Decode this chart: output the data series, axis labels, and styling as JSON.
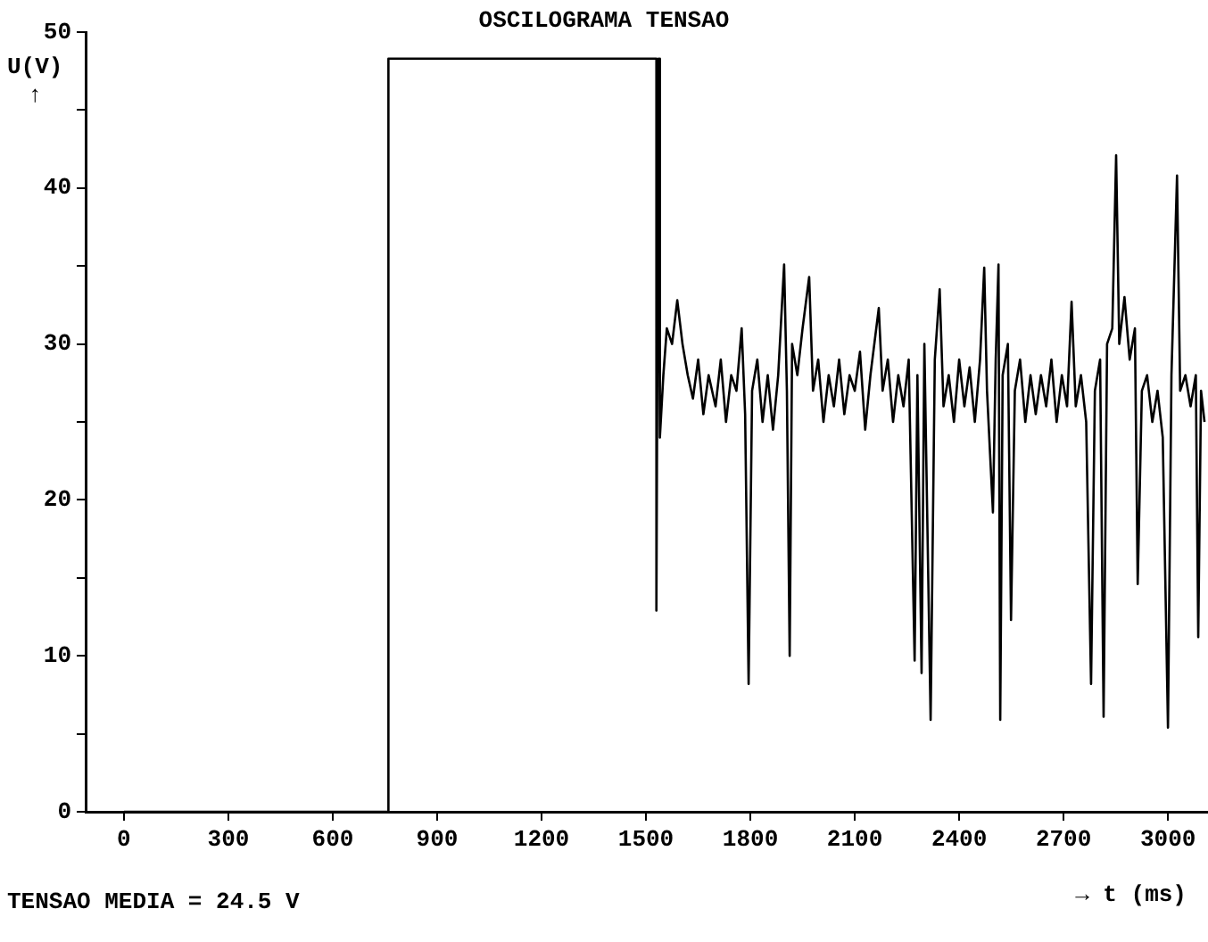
{
  "chart_data": {
    "type": "line",
    "title": "OSCILOGRAMA TENSAO",
    "xlabel": "→ t (ms)",
    "ylabel": "U(V)\n↑",
    "annotations": [
      "TENSAO MEDIA  = 24.5 V"
    ],
    "xlim": [
      -110,
      3115
    ],
    "xticks": [
      0,
      300,
      600,
      900,
      1200,
      1500,
      1800,
      2100,
      2400,
      2700,
      3000
    ],
    "ylim": [
      0,
      50
    ],
    "yticks": [
      0,
      {
        "value": 5,
        "label": null
      },
      10,
      {
        "value": 15,
        "label": null
      },
      20,
      {
        "value": 25,
        "label": null
      },
      30,
      {
        "value": 35,
        "label": null
      },
      40,
      {
        "value": 45,
        "label": null
      },
      50
    ],
    "grid": false,
    "legend": false,
    "marker": "none",
    "line_style": "solid",
    "series": [
      {
        "color": "#000000",
        "x": [
          0,
          760,
          760,
          1530,
          1530,
          1536,
          1540,
          1550,
          1560,
          1575,
          1590,
          1605,
          1620,
          1635,
          1650,
          1665,
          1680,
          1700,
          1715,
          1730,
          1745,
          1760,
          1775,
          1785,
          1795,
          1805,
          1820,
          1835,
          1850,
          1865,
          1880,
          1897,
          1905,
          1913,
          1920,
          1935,
          1950,
          1969,
          1980,
          1995,
          2010,
          2025,
          2040,
          2055,
          2070,
          2085,
          2100,
          2115,
          2130,
          2145,
          2169,
          2180,
          2195,
          2210,
          2225,
          2240,
          2255,
          2272,
          2280,
          2292,
          2300,
          2318,
          2330,
          2344,
          2355,
          2370,
          2385,
          2400,
          2415,
          2430,
          2445,
          2460,
          2472,
          2480,
          2497,
          2505,
          2513,
          2518,
          2525,
          2540,
          2549,
          2560,
          2575,
          2590,
          2605,
          2620,
          2635,
          2650,
          2665,
          2680,
          2695,
          2710,
          2723,
          2735,
          2750,
          2765,
          2779,
          2790,
          2805,
          2815,
          2825,
          2840,
          2851,
          2860,
          2875,
          2890,
          2905,
          2913,
          2925,
          2940,
          2955,
          2970,
          2985,
          3000,
          3010,
          3026,
          3035,
          3050,
          3065,
          3080,
          3087,
          3095,
          3105
        ],
        "values": [
          0,
          0,
          48.3,
          48.3,
          12.9,
          48.3,
          24,
          28,
          31,
          30,
          32.8,
          30,
          28,
          26.5,
          29,
          25.5,
          28,
          26,
          29,
          25,
          28,
          27,
          31,
          25.5,
          8.2,
          27,
          29,
          25,
          28,
          24.5,
          28,
          35.1,
          27,
          10.0,
          30,
          28,
          31,
          34.3,
          27,
          29,
          25,
          28,
          26,
          29,
          25.5,
          28,
          27,
          29.5,
          24.5,
          28,
          32.3,
          27,
          29,
          25,
          28,
          26,
          29,
          9.7,
          28,
          8.9,
          30,
          5.9,
          29,
          33.5,
          26,
          28,
          25,
          29,
          26,
          28.5,
          25,
          29,
          34.9,
          27,
          19.2,
          29,
          35.1,
          5.9,
          28,
          30,
          12.3,
          27,
          29,
          25,
          28,
          25.5,
          28,
          26,
          29,
          25,
          28,
          26,
          32.7,
          26,
          28,
          25,
          8.2,
          27,
          29,
          6.1,
          30,
          31,
          42.1,
          30,
          33,
          29,
          31,
          14.6,
          27,
          28,
          25,
          27,
          24,
          5.4,
          28,
          40.8,
          27,
          28,
          26,
          28,
          11.2,
          27,
          25
        ]
      }
    ]
  }
}
